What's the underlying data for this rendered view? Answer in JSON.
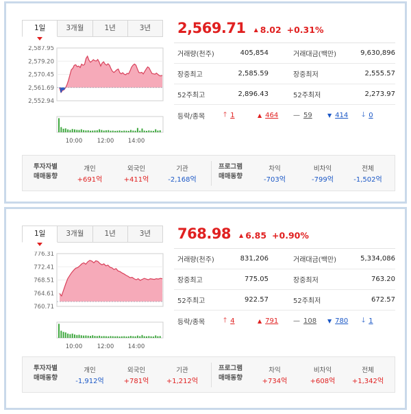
{
  "panels": [
    {
      "tabs": [
        "1일",
        "3개월",
        "1년",
        "3년"
      ],
      "price": "2,569.71",
      "change": "8.02",
      "change_pct": "+0.31%",
      "direction": "up",
      "stats": [
        {
          "l1": "거래량(천주)",
          "v1": "405,854",
          "l2": "거래대금(백만)",
          "v2": "9,630,896"
        },
        {
          "l1": "장중최고",
          "v1": "2,585.59",
          "l2": "장중최저",
          "v2": "2,555.57"
        },
        {
          "l1": "52주최고",
          "v1": "2,896.43",
          "l2": "52주최저",
          "v2": "2,273.97"
        }
      ],
      "advance_label": "등락/종목",
      "advance": {
        "upper_limit": "1",
        "up": "464",
        "flat": "59",
        "down": "414",
        "lower_limit": "0"
      },
      "chart": {
        "y_ticks": [
          "2,587.95",
          "2,579.20",
          "2,570.45",
          "2,561.69",
          "2,552.94"
        ],
        "x_ticks": [
          "10:00",
          "12:00",
          "14:00"
        ],
        "y_min": 2552.94,
        "y_max": 2587.95,
        "base_value": 2561.69,
        "line": [
          2561.3,
          2558.5,
          2559.8,
          2560.2,
          2561.5,
          2563.5,
          2566.5,
          2570.0,
          2573.5,
          2574.5,
          2576.5,
          2576.8,
          2575.5,
          2576.0,
          2575.0,
          2577.2,
          2576.5,
          2577.0,
          2581.0,
          2582.5,
          2579.8,
          2578.5,
          2579.2,
          2580.2,
          2579.5,
          2579.3,
          2580.3,
          2578.5,
          2576.0,
          2578.0,
          2578.8,
          2577.2,
          2576.6,
          2577.5,
          2576.5,
          2574.2,
          2572.5,
          2571.7,
          2572.6,
          2573.5,
          2574.0,
          2571.6,
          2570.8,
          2571.6,
          2570.6,
          2570.2,
          2571.1,
          2570.8,
          2572.8,
          2575.2,
          2576.5,
          2577.3,
          2576.6,
          2574.0,
          2571.7,
          2571.5,
          2571.8,
          2570.7,
          2572.4,
          2574.0,
          2575.4,
          2574.7,
          2572.7,
          2571.0,
          2570.8,
          2570.6,
          2571.3,
          2570.4,
          2569.6,
          2569.5,
          2569.7
        ],
        "volume": [
          0.98,
          0.36,
          0.25,
          0.27,
          0.2,
          0.16,
          0.23,
          0.2,
          0.17,
          0.16,
          0.21,
          0.15,
          0.13,
          0.14,
          0.11,
          0.12,
          0.13,
          0.14,
          0.21,
          0.16,
          0.12,
          0.14,
          0.15,
          0.11,
          0.12,
          0.1,
          0.11,
          0.13,
          0.1,
          0.12,
          0.11,
          0.1,
          0.16,
          0.12,
          0.11,
          0.3,
          0.11,
          0.26,
          0.12,
          0.1,
          0.13,
          0.11,
          0.1,
          0.21,
          0.12,
          0.14
        ]
      },
      "investor": {
        "title1": "투자자별",
        "title2": "매매동향",
        "cols": [
          {
            "h": "개인",
            "v": "+691억",
            "dir": "up"
          },
          {
            "h": "외국인",
            "v": "+411억",
            "dir": "up"
          },
          {
            "h": "기관",
            "v": "-2,168억",
            "dir": "down"
          }
        ],
        "ptitle1": "프로그램",
        "ptitle2": "매매동향",
        "pcols": [
          {
            "h": "차익",
            "v": "-703억",
            "dir": "down"
          },
          {
            "h": "비차익",
            "v": "-799억",
            "dir": "down"
          },
          {
            "h": "전체",
            "v": "-1,502억",
            "dir": "down"
          }
        ]
      },
      "colors": {
        "up": "#e02020",
        "down": "#1a57c6",
        "area": "#f5a5b5",
        "line": "#d8405a"
      }
    },
    {
      "tabs": [
        "1일",
        "3개월",
        "1년",
        "3년"
      ],
      "price": "768.98",
      "change": "6.85",
      "change_pct": "+0.90%",
      "direction": "up",
      "stats": [
        {
          "l1": "거래량(천주)",
          "v1": "831,206",
          "l2": "거래대금(백만)",
          "v2": "5,334,086"
        },
        {
          "l1": "장중최고",
          "v1": "775.05",
          "l2": "장중최저",
          "v2": "763.20"
        },
        {
          "l1": "52주최고",
          "v1": "922.57",
          "l2": "52주최저",
          "v2": "672.57"
        }
      ],
      "advance_label": "등락/종목",
      "advance": {
        "upper_limit": "4",
        "up": "791",
        "flat": "108",
        "down": "780",
        "lower_limit": "1"
      },
      "chart": {
        "y_ticks": [
          "776.31",
          "772.41",
          "768.51",
          "764.61",
          "760.71"
        ],
        "x_ticks": [
          "10:00",
          "12:00",
          "14:00"
        ],
        "y_min": 760.71,
        "y_max": 776.31,
        "base_value": 762.13,
        "line": [
          764.5,
          763.8,
          765.6,
          767.3,
          768.9,
          769.8,
          770.7,
          771.4,
          772.0,
          772.2,
          772.7,
          773.3,
          773.6,
          773.2,
          773.9,
          774.3,
          774.1,
          773.6,
          774.2,
          774.0,
          773.4,
          773.0,
          773.3,
          772.7,
          772.9,
          772.3,
          772.1,
          771.6,
          771.9,
          771.2,
          771.0,
          770.6,
          770.3,
          769.9,
          769.6,
          769.2,
          769.3,
          768.9,
          768.6,
          768.9,
          768.4,
          768.7,
          769.0,
          768.8,
          768.6,
          768.9,
          768.8,
          768.7,
          768.9,
          768.8,
          769.0,
          768.9
        ],
        "volume": [
          0.98,
          0.5,
          0.42,
          0.38,
          0.3,
          0.26,
          0.3,
          0.24,
          0.2,
          0.22,
          0.18,
          0.16,
          0.17,
          0.15,
          0.14,
          0.18,
          0.14,
          0.13,
          0.15,
          0.12,
          0.13,
          0.12,
          0.11,
          0.13,
          0.12,
          0.11,
          0.12,
          0.1,
          0.11,
          0.12,
          0.1,
          0.11,
          0.14,
          0.12,
          0.11,
          0.16,
          0.12,
          0.2,
          0.12,
          0.11,
          0.13,
          0.11,
          0.1,
          0.17,
          0.12,
          0.13
        ]
      },
      "investor": {
        "title1": "투자자별",
        "title2": "매매동향",
        "cols": [
          {
            "h": "개인",
            "v": "-1,912억",
            "dir": "down"
          },
          {
            "h": "외국인",
            "v": "+781억",
            "dir": "up"
          },
          {
            "h": "기관",
            "v": "+1,212억",
            "dir": "up"
          }
        ],
        "ptitle1": "프로그램",
        "ptitle2": "매매동향",
        "pcols": [
          {
            "h": "차익",
            "v": "+734억",
            "dir": "up"
          },
          {
            "h": "비차익",
            "v": "+608억",
            "dir": "up"
          },
          {
            "h": "전체",
            "v": "+1,342억",
            "dir": "up"
          }
        ]
      },
      "colors": {
        "up": "#e02020",
        "down": "#1a57c6",
        "area": "#f5a5b5",
        "line": "#d8405a"
      }
    }
  ]
}
